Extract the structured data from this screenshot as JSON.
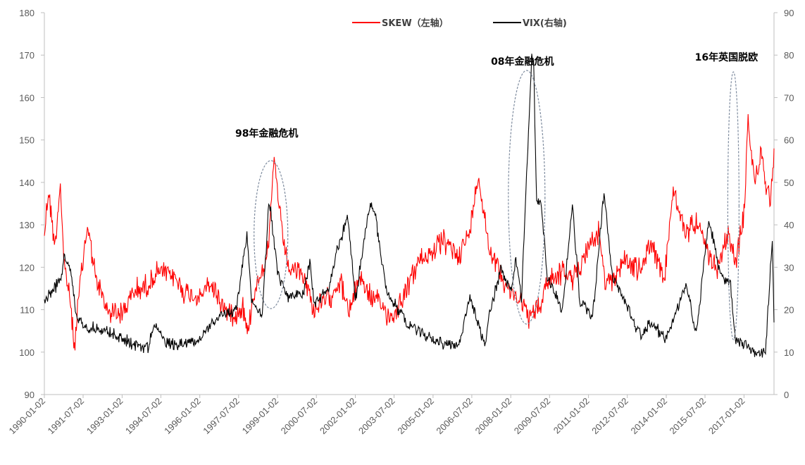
{
  "chart_data": {
    "type": "line",
    "legend": {
      "position": "top-center",
      "entries": [
        {
          "name": "SKEW（左轴）",
          "color": "#ff0000"
        },
        {
          "name": "VIX(右轴)",
          "color": "#000000"
        }
      ]
    },
    "left_axis": {
      "ylim": [
        90,
        180
      ],
      "ticks": [
        90,
        100,
        110,
        120,
        130,
        140,
        150,
        160,
        170,
        180
      ]
    },
    "right_axis": {
      "ylim": [
        0,
        90
      ],
      "ticks": [
        0,
        10,
        20,
        30,
        40,
        50,
        60,
        70,
        80,
        90
      ]
    },
    "x_axis": {
      "type": "date",
      "range": [
        "1990-01-02",
        "2018-03-01"
      ],
      "tick_labels": [
        "1990-01-02",
        "1991-07-02",
        "1993-01-02",
        "1994-07-02",
        "1996-01-02",
        "1997-07-02",
        "1999-01-02",
        "2000-07-02",
        "2002-01-02",
        "2003-07-02",
        "2005-01-02",
        "2006-07-02",
        "2008-01-02",
        "2009-07-02",
        "2011-01-02",
        "2012-07-02",
        "2014-01-02",
        "2015-07-02",
        "2017-01-02"
      ]
    },
    "grid": false,
    "series": [
      {
        "name": "SKEW（左轴）",
        "axis": "left",
        "color": "#ff0000",
        "points": [
          [
            "1990-01-02",
            128
          ],
          [
            "1990-03-01",
            138
          ],
          [
            "1990-06-01",
            125
          ],
          [
            "1990-08-15",
            140
          ],
          [
            "1990-10-01",
            122
          ],
          [
            "1991-01-01",
            112
          ],
          [
            "1991-03-01",
            101
          ],
          [
            "1991-06-01",
            118
          ],
          [
            "1991-09-01",
            130
          ],
          [
            "1992-01-01",
            117
          ],
          [
            "1992-06-01",
            110
          ],
          [
            "1993-01-01",
            109
          ],
          [
            "1993-06-01",
            114
          ],
          [
            "1994-01-01",
            116
          ],
          [
            "1994-06-01",
            119
          ],
          [
            "1995-01-01",
            118
          ],
          [
            "1995-06-01",
            114
          ],
          [
            "1996-01-01",
            113
          ],
          [
            "1996-06-01",
            116
          ],
          [
            "1997-01-01",
            110
          ],
          [
            "1997-06-01",
            109
          ],
          [
            "1997-09-01",
            111
          ],
          [
            "1997-11-01",
            104
          ],
          [
            "1998-02-01",
            114
          ],
          [
            "1998-06-01",
            120
          ],
          [
            "1998-09-01",
            125
          ],
          [
            "1998-11-15",
            146
          ],
          [
            "1999-03-01",
            128
          ],
          [
            "1999-06-01",
            120
          ],
          [
            "2000-01-01",
            118
          ],
          [
            "2000-06-01",
            110
          ],
          [
            "2001-01-01",
            113
          ],
          [
            "2001-06-01",
            117
          ],
          [
            "2001-10-01",
            109
          ],
          [
            "2002-03-01",
            118
          ],
          [
            "2002-08-01",
            113
          ],
          [
            "2003-01-01",
            111
          ],
          [
            "2003-06-01",
            108
          ],
          [
            "2004-01-01",
            115
          ],
          [
            "2004-06-01",
            121
          ],
          [
            "2005-01-01",
            124
          ],
          [
            "2005-06-01",
            126
          ],
          [
            "2006-01-01",
            123
          ],
          [
            "2006-06-01",
            128
          ],
          [
            "2006-10-01",
            142
          ],
          [
            "2007-03-01",
            125
          ],
          [
            "2007-08-01",
            119
          ],
          [
            "2008-01-01",
            114
          ],
          [
            "2008-06-01",
            112
          ],
          [
            "2008-10-01",
            108
          ],
          [
            "2009-03-01",
            111
          ],
          [
            "2009-06-01",
            117
          ],
          [
            "2010-01-01",
            119
          ],
          [
            "2010-06-01",
            117
          ],
          [
            "2011-01-01",
            125
          ],
          [
            "2011-06-01",
            128
          ],
          [
            "2011-09-01",
            115
          ],
          [
            "2012-06-01",
            122
          ],
          [
            "2013-01-01",
            119
          ],
          [
            "2013-06-01",
            126
          ],
          [
            "2013-12-01",
            116
          ],
          [
            "2014-04-01",
            138
          ],
          [
            "2014-10-01",
            128
          ],
          [
            "2015-03-01",
            131
          ],
          [
            "2015-09-01",
            122
          ],
          [
            "2016-01-01",
            120
          ],
          [
            "2016-06-01",
            128
          ],
          [
            "2016-09-01",
            121
          ],
          [
            "2017-01-01",
            132
          ],
          [
            "2017-03-01",
            154
          ],
          [
            "2017-06-01",
            140
          ],
          [
            "2017-09-01",
            147
          ],
          [
            "2018-01-01",
            135
          ],
          [
            "2018-03-01",
            148
          ]
        ]
      },
      {
        "name": "VIX(右轴)",
        "axis": "right",
        "color": "#000000",
        "points": [
          [
            "1990-01-02",
            22
          ],
          [
            "1990-08-15",
            27
          ],
          [
            "1990-10-15",
            33
          ],
          [
            "1991-01-15",
            28
          ],
          [
            "1991-04-01",
            18
          ],
          [
            "1991-09-01",
            16
          ],
          [
            "1992-06-01",
            15
          ],
          [
            "1993-06-01",
            12
          ],
          [
            "1994-01-01",
            11
          ],
          [
            "1994-04-01",
            17
          ],
          [
            "1994-09-01",
            12
          ],
          [
            "1995-06-01",
            12
          ],
          [
            "1996-01-01",
            13
          ],
          [
            "1996-07-01",
            17
          ],
          [
            "1997-01-01",
            19
          ],
          [
            "1997-06-01",
            20
          ],
          [
            "1997-10-27",
            38
          ],
          [
            "1998-01-01",
            22
          ],
          [
            "1998-06-01",
            19
          ],
          [
            "1998-08-31",
            45
          ],
          [
            "1998-10-08",
            42
          ],
          [
            "1999-01-01",
            28
          ],
          [
            "1999-06-01",
            23
          ],
          [
            "2000-01-01",
            24
          ],
          [
            "2000-04-01",
            31
          ],
          [
            "2000-06-01",
            21
          ],
          [
            "2001-01-01",
            25
          ],
          [
            "2001-04-01",
            33
          ],
          [
            "2001-09-20",
            42
          ],
          [
            "2002-01-01",
            22
          ],
          [
            "2002-07-24",
            45
          ],
          [
            "2002-10-08",
            43
          ],
          [
            "2003-01-01",
            32
          ],
          [
            "2003-04-01",
            24
          ],
          [
            "2003-09-01",
            20
          ],
          [
            "2004-01-01",
            17
          ],
          [
            "2004-06-01",
            15
          ],
          [
            "2005-01-01",
            13
          ],
          [
            "2005-06-01",
            12
          ],
          [
            "2006-01-01",
            12
          ],
          [
            "2006-06-15",
            23
          ],
          [
            "2007-01-01",
            11
          ],
          [
            "2007-03-01",
            18
          ],
          [
            "2007-08-15",
            30
          ],
          [
            "2008-01-01",
            24
          ],
          [
            "2008-03-15",
            32
          ],
          [
            "2008-06-01",
            22
          ],
          [
            "2008-10-24",
            80
          ],
          [
            "2008-11-20",
            78
          ],
          [
            "2009-01-01",
            45
          ],
          [
            "2009-03-01",
            45
          ],
          [
            "2009-06-01",
            28
          ],
          [
            "2010-01-01",
            20
          ],
          [
            "2010-05-20",
            45
          ],
          [
            "2010-09-01",
            22
          ],
          [
            "2011-03-01",
            18
          ],
          [
            "2011-08-08",
            48
          ],
          [
            "2011-12-01",
            28
          ],
          [
            "2012-06-01",
            22
          ],
          [
            "2013-01-01",
            14
          ],
          [
            "2013-06-01",
            17
          ],
          [
            "2014-01-01",
            13
          ],
          [
            "2014-10-15",
            26
          ],
          [
            "2015-03-01",
            14
          ],
          [
            "2015-08-24",
            41
          ],
          [
            "2016-02-11",
            28
          ],
          [
            "2016-06-27",
            26
          ],
          [
            "2016-09-01",
            13
          ],
          [
            "2017-01-01",
            12
          ],
          [
            "2017-06-01",
            10
          ],
          [
            "2017-11-01",
            10
          ],
          [
            "2018-02-05",
            37
          ],
          [
            "2018-03-01",
            17
          ]
        ]
      }
    ],
    "annotations": [
      {
        "text": "98年金融危机",
        "date": "1998-09-01"
      },
      {
        "text": "08年金融危机",
        "date": "2008-11-01"
      },
      {
        "text": "16年英国脱欧",
        "date": "2016-06-27"
      }
    ]
  }
}
